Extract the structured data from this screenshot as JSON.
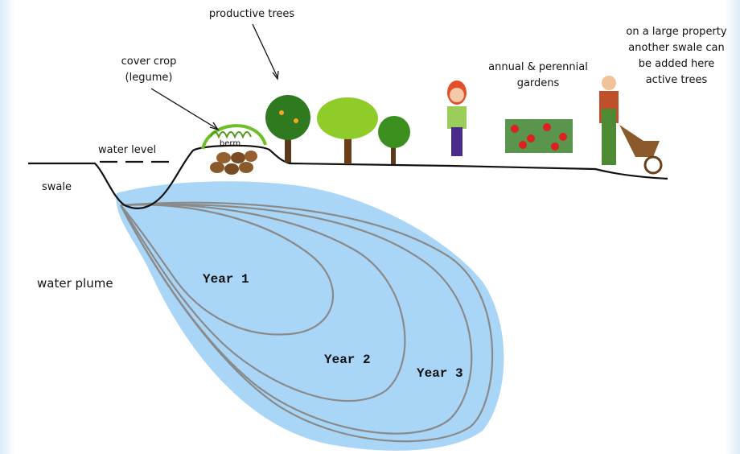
{
  "labels": {
    "productive_trees": "productive trees",
    "cover_crop": [
      "cover crop",
      "(legume)"
    ],
    "berm": "berm",
    "water_level": "water level",
    "swale": "swale",
    "water_plume": "water plume",
    "years": [
      "Year 1",
      "Year 2",
      "Year 3"
    ],
    "gardens": [
      "annual & perennial",
      "gardens"
    ],
    "large_property": [
      "on a large property",
      "another swale can",
      "be added here",
      "active trees"
    ]
  }
}
